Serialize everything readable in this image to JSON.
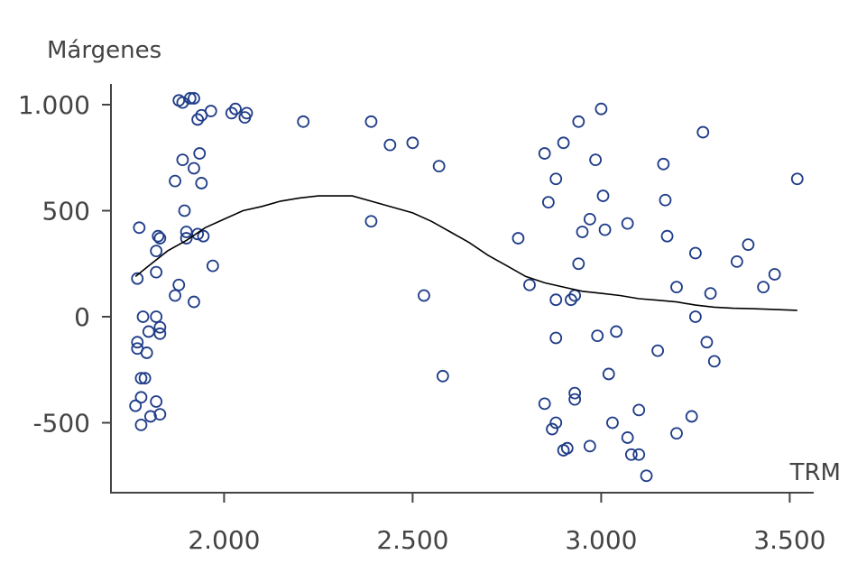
{
  "chart_data": {
    "type": "scatter",
    "title": "",
    "xlabel": "TRM",
    "ylabel": "Márgenes",
    "xlim": [
      1700,
      3600
    ],
    "ylim": [
      -830,
      1100
    ],
    "xticks": [
      2000,
      2500,
      3000,
      3500
    ],
    "xtick_labels": [
      "2.000",
      "2.500",
      "3.000",
      "3.500"
    ],
    "yticks": [
      1000,
      500,
      0,
      -500
    ],
    "ytick_labels": [
      "1.000",
      "500",
      "0",
      "-500"
    ],
    "grid": false,
    "legend": "none",
    "colors": {
      "points": "#1f3c88",
      "fit_line": "#000000",
      "axis": "#444444"
    },
    "series": [
      {
        "type": "scatter",
        "points": [
          [
            1770,
            180
          ],
          [
            1775,
            420
          ],
          [
            1770,
            -120
          ],
          [
            1770,
            -150
          ],
          [
            1765,
            -420
          ],
          [
            1780,
            -290
          ],
          [
            1785,
            0
          ],
          [
            1790,
            -290
          ],
          [
            1795,
            -170
          ],
          [
            1780,
            -380
          ],
          [
            1800,
            -70
          ],
          [
            1805,
            -470
          ],
          [
            1780,
            -510
          ],
          [
            1820,
            210
          ],
          [
            1820,
            310
          ],
          [
            1825,
            380
          ],
          [
            1830,
            370
          ],
          [
            1820,
            0
          ],
          [
            1830,
            -50
          ],
          [
            1830,
            -80
          ],
          [
            1830,
            -460
          ],
          [
            1820,
            -400
          ],
          [
            1870,
            640
          ],
          [
            1870,
            100
          ],
          [
            1880,
            150
          ],
          [
            1890,
            740
          ],
          [
            1895,
            500
          ],
          [
            1900,
            400
          ],
          [
            1900,
            370
          ],
          [
            1880,
            1020
          ],
          [
            1890,
            1010
          ],
          [
            1910,
            1030
          ],
          [
            1920,
            1030
          ],
          [
            1920,
            700
          ],
          [
            1920,
            70
          ],
          [
            1930,
            930
          ],
          [
            1930,
            390
          ],
          [
            1935,
            770
          ],
          [
            1940,
            630
          ],
          [
            1940,
            950
          ],
          [
            1945,
            380
          ],
          [
            1965,
            970
          ],
          [
            1970,
            240
          ],
          [
            2020,
            960
          ],
          [
            2030,
            980
          ],
          [
            2055,
            940
          ],
          [
            2060,
            960
          ],
          [
            2210,
            920
          ],
          [
            2390,
            920
          ],
          [
            2390,
            450
          ],
          [
            2440,
            810
          ],
          [
            2500,
            820
          ],
          [
            2530,
            100
          ],
          [
            2570,
            710
          ],
          [
            2580,
            -280
          ],
          [
            2780,
            370
          ],
          [
            2810,
            150
          ],
          [
            2850,
            770
          ],
          [
            2850,
            -410
          ],
          [
            2860,
            540
          ],
          [
            2870,
            -530
          ],
          [
            2880,
            -500
          ],
          [
            2880,
            650
          ],
          [
            2880,
            80
          ],
          [
            2880,
            -100
          ],
          [
            2900,
            820
          ],
          [
            2900,
            -630
          ],
          [
            2910,
            -620
          ],
          [
            2920,
            80
          ],
          [
            2930,
            100
          ],
          [
            2930,
            -390
          ],
          [
            2930,
            -360
          ],
          [
            2940,
            920
          ],
          [
            2940,
            250
          ],
          [
            2950,
            400
          ],
          [
            2970,
            460
          ],
          [
            2970,
            -610
          ],
          [
            2985,
            740
          ],
          [
            2990,
            -90
          ],
          [
            3000,
            980
          ],
          [
            3005,
            570
          ],
          [
            3010,
            410
          ],
          [
            3020,
            -270
          ],
          [
            3030,
            -500
          ],
          [
            3040,
            -70
          ],
          [
            3070,
            440
          ],
          [
            3070,
            -570
          ],
          [
            3080,
            -650
          ],
          [
            3100,
            -440
          ],
          [
            3100,
            -650
          ],
          [
            3120,
            -750
          ],
          [
            3150,
            -160
          ],
          [
            3165,
            720
          ],
          [
            3170,
            550
          ],
          [
            3175,
            380
          ],
          [
            3200,
            140
          ],
          [
            3200,
            -550
          ],
          [
            3240,
            -470
          ],
          [
            3250,
            0
          ],
          [
            3250,
            300
          ],
          [
            3270,
            870
          ],
          [
            3280,
            -120
          ],
          [
            3290,
            110
          ],
          [
            3300,
            -210
          ],
          [
            3360,
            260
          ],
          [
            3390,
            340
          ],
          [
            3430,
            140
          ],
          [
            3460,
            200
          ],
          [
            3520,
            650
          ]
        ]
      },
      {
        "type": "line",
        "name": "",
        "points": [
          [
            1765,
            190
          ],
          [
            1800,
            240
          ],
          [
            1850,
            310
          ],
          [
            1900,
            360
          ],
          [
            1950,
            420
          ],
          [
            2000,
            460
          ],
          [
            2050,
            500
          ],
          [
            2100,
            520
          ],
          [
            2150,
            545
          ],
          [
            2200,
            560
          ],
          [
            2250,
            570
          ],
          [
            2300,
            570
          ],
          [
            2340,
            570
          ],
          [
            2400,
            540
          ],
          [
            2450,
            515
          ],
          [
            2500,
            490
          ],
          [
            2550,
            450
          ],
          [
            2600,
            400
          ],
          [
            2650,
            350
          ],
          [
            2700,
            290
          ],
          [
            2750,
            240
          ],
          [
            2800,
            190
          ],
          [
            2850,
            160
          ],
          [
            2900,
            140
          ],
          [
            2950,
            120
          ],
          [
            3000,
            110
          ],
          [
            3050,
            100
          ],
          [
            3100,
            85
          ],
          [
            3150,
            78
          ],
          [
            3200,
            70
          ],
          [
            3250,
            55
          ],
          [
            3300,
            45
          ],
          [
            3350,
            40
          ],
          [
            3400,
            38
          ],
          [
            3450,
            35
          ],
          [
            3520,
            30
          ]
        ]
      }
    ]
  }
}
